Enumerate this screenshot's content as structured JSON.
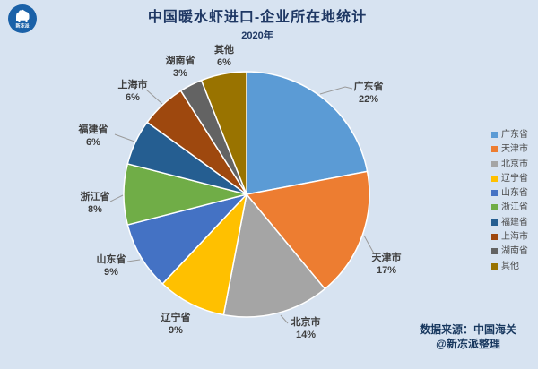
{
  "header": {
    "title": "中国暖水虾进口-企业所在地统计",
    "subtitle": "2020年"
  },
  "logo": {
    "brand": "新冻派",
    "icon": "polar-bear-icon",
    "circle_color": "#1A61A8"
  },
  "chart_data": {
    "type": "pie",
    "title": "中国暖水虾进口-企业所在地统计",
    "subtitle": "2020年",
    "categories": [
      "广东省",
      "天津市",
      "北京市",
      "辽宁省",
      "山东省",
      "浙江省",
      "福建省",
      "上海市",
      "湖南省",
      "其他"
    ],
    "values": [
      22,
      17,
      14,
      9,
      9,
      8,
      6,
      6,
      3,
      6
    ],
    "unit": "%",
    "colors": [
      "#5B9BD5",
      "#ED7D31",
      "#A5A5A5",
      "#FFC000",
      "#4472C4",
      "#70AD47",
      "#255E91",
      "#9E480E",
      "#636363",
      "#997300"
    ],
    "start_angle_deg": 0,
    "direction": "clockwise",
    "legend_position": "right",
    "slice_border_color": "#FFFFFF",
    "background_color": "#D7E3F1",
    "label_format": "{name} {value}%"
  },
  "footer": {
    "source": "数据来源：中国海关",
    "credit": "@新冻派整理"
  }
}
